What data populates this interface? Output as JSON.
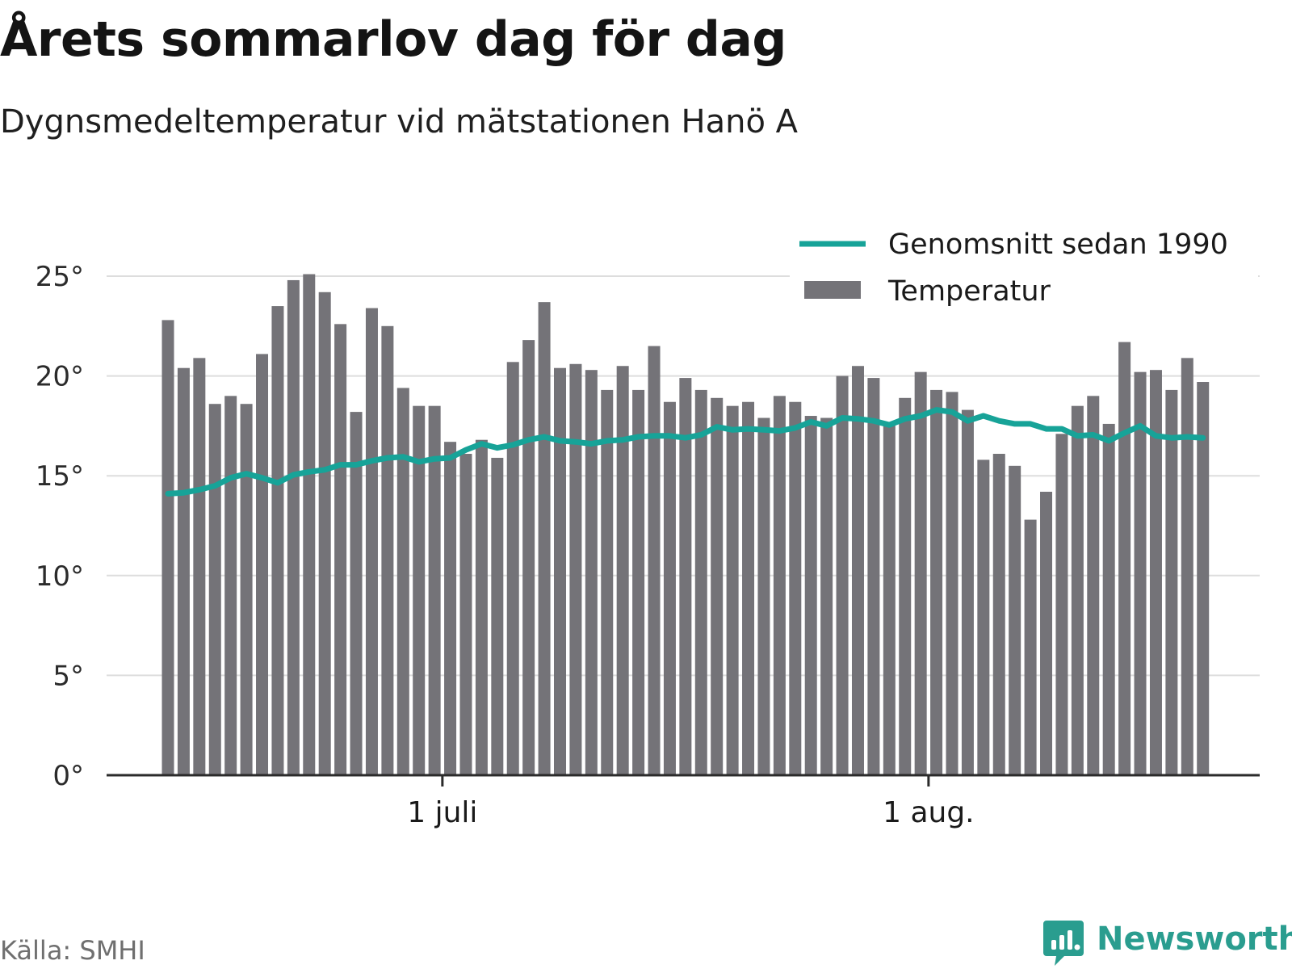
{
  "header": {
    "title": "Årets sommarlov dag för dag",
    "subtitle": "Dygnsmedeltemperatur vid mätstationen Hanö A"
  },
  "footer": {
    "source": "Källa: SMHI",
    "brand": "Newsworthy"
  },
  "colors": {
    "bar": "#747378",
    "line": "#17a398",
    "grid": "#dddddd",
    "axis": "#2b2b2b",
    "brand": "#2a9d8f"
  },
  "chart_data": {
    "type": "bar",
    "x_axis": {
      "ticks": [
        {
          "label": "1 juli",
          "day": 18
        },
        {
          "label": "1 aug.",
          "day": 49
        }
      ]
    },
    "y_axis": {
      "ticks": [
        {
          "label": "0°",
          "value": 0
        },
        {
          "label": "5°",
          "value": 5
        },
        {
          "label": "10°",
          "value": 10
        },
        {
          "label": "15°",
          "value": 15
        },
        {
          "label": "20°",
          "value": 20
        },
        {
          "label": "25°",
          "value": 25
        }
      ]
    },
    "ylim": [
      0,
      25
    ],
    "grid": true,
    "legend_position": "top-right",
    "series": [
      {
        "name": "Temperatur",
        "kind": "bar",
        "first_date": "13 juni",
        "values": [
          22.8,
          20.4,
          20.9,
          18.6,
          19.0,
          18.6,
          21.1,
          23.5,
          24.8,
          25.1,
          24.2,
          22.6,
          18.2,
          23.4,
          22.5,
          19.4,
          18.5,
          18.5,
          16.7,
          16.1,
          16.8,
          15.9,
          20.7,
          21.8,
          23.7,
          20.4,
          20.6,
          20.3,
          19.3,
          20.5,
          19.3,
          21.5,
          18.7,
          19.9,
          19.3,
          18.9,
          18.5,
          18.7,
          17.9,
          19.0,
          18.7,
          18.0,
          17.9,
          20.0,
          20.5,
          19.9,
          17.7,
          18.9,
          20.2,
          19.3,
          19.2,
          18.3,
          15.8,
          16.1,
          15.5,
          12.8,
          14.2,
          17.1,
          18.5,
          19.0,
          17.6,
          21.7,
          20.2,
          20.3,
          19.3,
          20.9,
          19.7
        ]
      },
      {
        "name": "Genomsnitt sedan 1990",
        "kind": "line",
        "first_date": "13 juni",
        "values": [
          14.1,
          14.15,
          14.3,
          14.5,
          14.9,
          15.1,
          14.9,
          14.65,
          15.05,
          15.2,
          15.3,
          15.55,
          15.55,
          15.75,
          15.9,
          15.95,
          15.7,
          15.85,
          15.9,
          16.3,
          16.6,
          16.4,
          16.55,
          16.8,
          16.95,
          16.75,
          16.7,
          16.6,
          16.75,
          16.8,
          16.95,
          17.0,
          17.0,
          16.9,
          17.05,
          17.45,
          17.3,
          17.35,
          17.3,
          17.25,
          17.4,
          17.7,
          17.5,
          17.9,
          17.85,
          17.75,
          17.55,
          17.85,
          18.0,
          18.3,
          18.2,
          17.75,
          18.0,
          17.75,
          17.6,
          17.6,
          17.35,
          17.35,
          17.0,
          17.05,
          16.75,
          17.15,
          17.5,
          17.0,
          16.9,
          16.95,
          16.9
        ]
      }
    ]
  }
}
